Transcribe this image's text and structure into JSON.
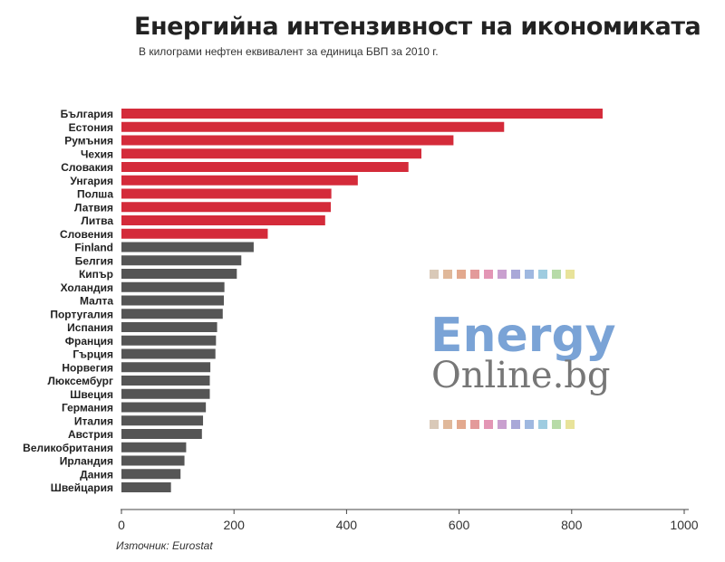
{
  "chart_data": {
    "type": "bar",
    "orientation": "horizontal",
    "title": "Енергийна интензивност на икономиката",
    "subtitle": "В килограми нефтен еквивалент за единица БВП за 2010 г.",
    "source": "Източник: Eurostat",
    "categories": [
      "България",
      "Естония",
      "Румъния",
      "Чехия",
      "Словакия",
      "Унгария",
      "Полша",
      "Латвия",
      "Литва",
      "Словения",
      "Finland",
      "Белгия",
      "Кипър",
      "Холандия",
      "Малта",
      "Португалия",
      "Испания",
      "Франция",
      "Гърция",
      "Норвегия",
      "Люксембург",
      "Швеция",
      "Германия",
      "Италия",
      "Австрия",
      "Великобритания",
      "Ирландия",
      "Дания",
      "Швейцария"
    ],
    "values": [
      855,
      680,
      590,
      533,
      510,
      420,
      373,
      372,
      362,
      260,
      235,
      213,
      205,
      183,
      182,
      180,
      170,
      168,
      167,
      158,
      157,
      157,
      150,
      145,
      143,
      115,
      112,
      105,
      88
    ],
    "highlight_count": 10,
    "colors": {
      "highlight": "#d42b3a",
      "default": "#555555"
    },
    "xlim": [
      0,
      1000
    ],
    "xticks": [
      "0",
      "200",
      "400",
      "600",
      "800",
      "1000"
    ],
    "grid": false,
    "xlabel": "",
    "ylabel": ""
  },
  "watermark": {
    "line1": "Energy",
    "line2": "Online.bg",
    "swatches": [
      "#d9c9b8",
      "#e0b89a",
      "#e3a98e",
      "#e39a9a",
      "#e396b5",
      "#c9a0cf",
      "#a9a8d8",
      "#9fb8e0",
      "#9fcce0",
      "#b7dba8",
      "#e8e39a"
    ]
  }
}
